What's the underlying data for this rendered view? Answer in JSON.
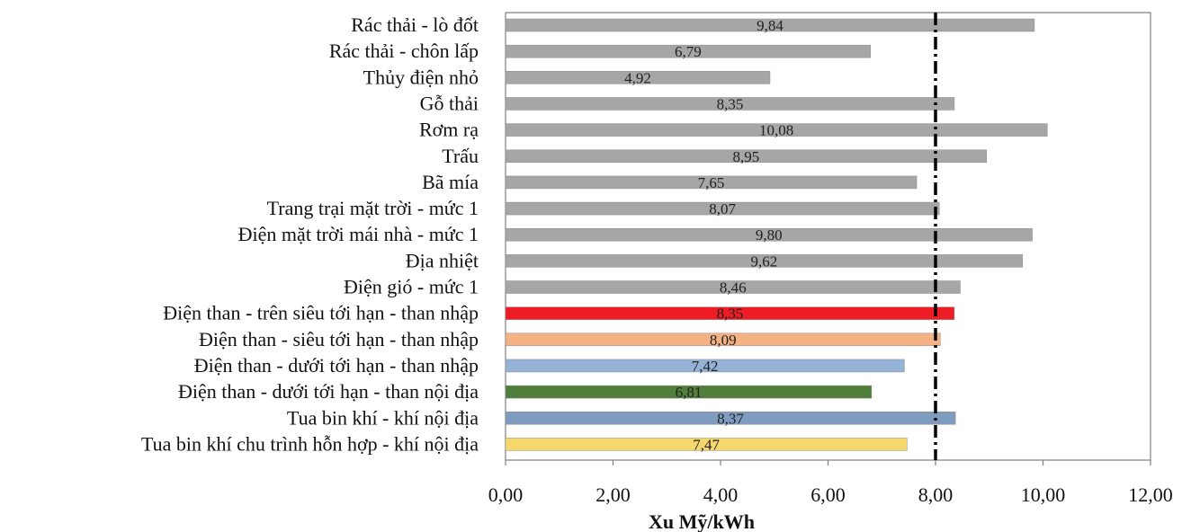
{
  "chart_data": {
    "type": "bar",
    "orientation": "horizontal",
    "categories": [
      "Rác thải - lò đốt",
      "Rác thải - chôn lấp",
      "Thủy điện nhỏ",
      "Gỗ thải",
      "Rơm rạ",
      "Trấu",
      "Bã mía",
      "Trang trại mặt trời - mức 1",
      "Điện mặt trời mái nhà - mức 1",
      "Địa nhiệt",
      "Điện gió - mức 1",
      "Điện than - trên siêu tới hạn - than nhập",
      "Điện than - siêu tới hạn - than nhập",
      "Điện than - dưới tới hạn - than nhập",
      "Điện than - dưới tới hạn - than nội địa",
      "Tua bin khí - khí nội địa",
      "Tua bin khí chu trình hỗn hợp - khí nội địa"
    ],
    "values": [
      9.84,
      6.79,
      4.92,
      8.35,
      10.08,
      8.95,
      7.65,
      8.07,
      9.8,
      9.62,
      8.46,
      8.35,
      8.09,
      7.42,
      6.81,
      8.37,
      7.47
    ],
    "value_labels": [
      "9,84",
      "6,79",
      "4,92",
      "8,35",
      "10,08",
      "8,95",
      "7,65",
      "8,07",
      "9,80",
      "9,62",
      "8,46",
      "8,35",
      "8,09",
      "7,42",
      "6,81",
      "8,37",
      "7,47"
    ],
    "colors": [
      "#a6a6a6",
      "#a6a6a6",
      "#a6a6a6",
      "#a6a6a6",
      "#a6a6a6",
      "#a6a6a6",
      "#a6a6a6",
      "#a6a6a6",
      "#a6a6a6",
      "#a6a6a6",
      "#a6a6a6",
      "#ee1c25",
      "#f4b183",
      "#95b3d7",
      "#4f7f3a",
      "#7f9cc0",
      "#f5d76e"
    ],
    "xlim": [
      0,
      12
    ],
    "xticks": [
      0,
      2,
      4,
      6,
      8,
      10,
      12
    ],
    "xtick_labels": [
      "0,00",
      "2,00",
      "4,00",
      "6,00",
      "8,00",
      "10,00",
      "12,00"
    ],
    "xlabel": "Xu Mỹ/kWh",
    "reference_line": {
      "x": 8.0,
      "style": "dash-dot",
      "color": "#000000"
    },
    "grid": false,
    "legend": "none"
  }
}
